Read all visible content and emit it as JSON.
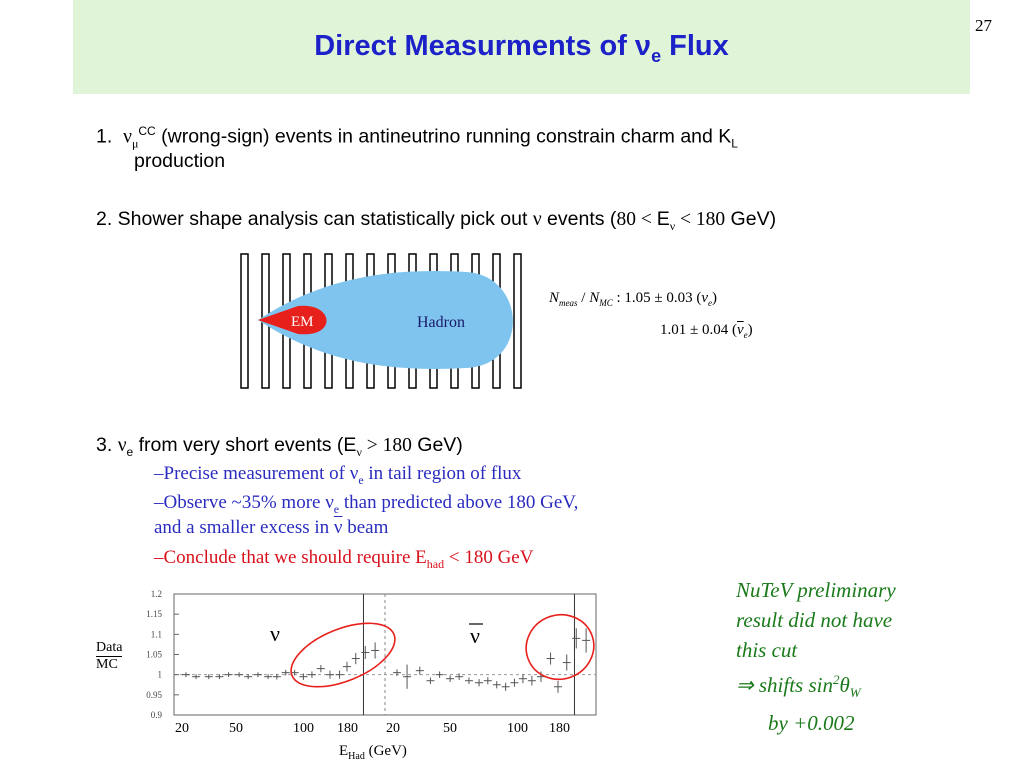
{
  "slide": {
    "title": "Direct Measurments of ν",
    "title_sub": "e",
    "title_tail": " Flux",
    "page_number": "27"
  },
  "item1": {
    "num": "1.",
    "nu": "ν",
    "nu_sub": "μ",
    "nu_sup": "CC",
    "text": " (wrong-sign) events in antineutrino running constrain charm and K",
    "k_sub": "L",
    "line2": "production"
  },
  "item2": {
    "text_a": "2. Shower shape analysis can statistically pick out ",
    "nu": "ν",
    "text_b": " events (",
    "range_a": "80 < ",
    "e": "E",
    "e_sub": "ν",
    "range_b": " < 180",
    "unit": " GeV)"
  },
  "shower_diagram": {
    "em_label": "EM",
    "hadron_label": "Hadron",
    "ratio_n": "N",
    "ratio_n_sub": "meas",
    "ratio_slash": " / ",
    "ratio_mc": "N",
    "ratio_mc_sub": "MC",
    "ratio_colon": " : ",
    "ratio_line1": "1.05 ± 0.03 (",
    "ratio_line1_nu": "ν",
    "ratio_line1_nu_sub": "e",
    "ratio_line1_end": ")",
    "ratio_line2": "1.01 ± 0.04 (",
    "ratio_line2_nu": "ν",
    "ratio_line2_nu_sub": "e",
    "ratio_line2_end": ")"
  },
  "item3": {
    "text_a": "3. ",
    "nu": "ν",
    "nu_sub": "e",
    "text_b": " from very short events (E",
    "e_sub": "ν",
    "range": " > 180",
    "unit": " GeV)",
    "bullets": {
      "b1_a": "–Precise measurement of ν",
      "b1_sub": "e",
      "b1_b": " in tail region of flux",
      "b2_a": "–Observe ~35% more ν",
      "b2_sub": "e",
      "b2_b": " than predicted above 180 GeV,",
      "b2_line2_a": "and a smaller excess in ",
      "b2_line2_nu": "ν",
      "b2_line2_b": " beam",
      "b3_a": "–Conclude that we should require E",
      "b3_sub": "had",
      "b3_b": " < 180 GeV"
    }
  },
  "note": {
    "line1": "NuTeV preliminary",
    "line2": "result did not have",
    "line3": "this cut",
    "line4_arrow": "⇒",
    "line4_a": " shifts sin",
    "line4_sup": "2",
    "line4_theta": "θ",
    "line4_sub": "W",
    "line5": "by +0.002"
  },
  "plot": {
    "ylabel_top": "Data",
    "ylabel_bottom": "MC",
    "nu_label": "ν",
    "nubar_label": "ν",
    "xlabel": "E",
    "xlabel_sub": "Had",
    "xlabel_unit": " (GeV)",
    "yticks": [
      "1.2",
      "1.15",
      "1.1",
      "1.05",
      "1",
      "0.95",
      "0.9"
    ],
    "xticks_nu": [
      "20",
      "50",
      "100",
      "180"
    ],
    "xticks_nubar": [
      "20",
      "50",
      "100",
      "180"
    ]
  },
  "chart_data": {
    "type": "scatter",
    "title": "",
    "xlabel": "EHad (GeV)",
    "ylabel": "Data / MC",
    "ylim": [
      0.9,
      1.2
    ],
    "grid": false,
    "reference_line": 1.0,
    "series": [
      {
        "name": "ν",
        "x": [
          12,
          14,
          17,
          20,
          23,
          27,
          31,
          36,
          42,
          48,
          55,
          63,
          72,
          82,
          94,
          108,
          125,
          140,
          160,
          185,
          215
        ],
        "y": [
          1.0,
          0.995,
          0.995,
          0.995,
          1.0,
          1.0,
          0.995,
          1.0,
          0.995,
          0.995,
          1.005,
          1.005,
          0.995,
          1.0,
          1.015,
          1.0,
          1.0,
          1.02,
          1.04,
          1.055,
          1.06
        ],
        "yerr": [
          0.006,
          0.006,
          0.006,
          0.006,
          0.006,
          0.006,
          0.006,
          0.006,
          0.006,
          0.007,
          0.007,
          0.007,
          0.008,
          0.008,
          0.009,
          0.01,
          0.01,
          0.012,
          0.014,
          0.016,
          0.02
        ]
      },
      {
        "name": "ν",
        "x": [
          12,
          14,
          17,
          20,
          23,
          27,
          31,
          36,
          42,
          48,
          55,
          63,
          72,
          82,
          94,
          108,
          125,
          140,
          160,
          185,
          215
        ],
        "y": [
          1.005,
          0.995,
          1.01,
          0.985,
          1.0,
          0.99,
          0.995,
          0.985,
          0.98,
          0.985,
          0.975,
          0.97,
          0.98,
          0.99,
          0.985,
          0.995,
          1.04,
          0.97,
          1.03,
          1.09,
          1.085
        ],
        "yerr": [
          0.008,
          0.03,
          0.01,
          0.008,
          0.008,
          0.008,
          0.008,
          0.008,
          0.009,
          0.009,
          0.009,
          0.01,
          0.01,
          0.011,
          0.012,
          0.013,
          0.015,
          0.015,
          0.02,
          0.025,
          0.03
        ]
      }
    ]
  }
}
